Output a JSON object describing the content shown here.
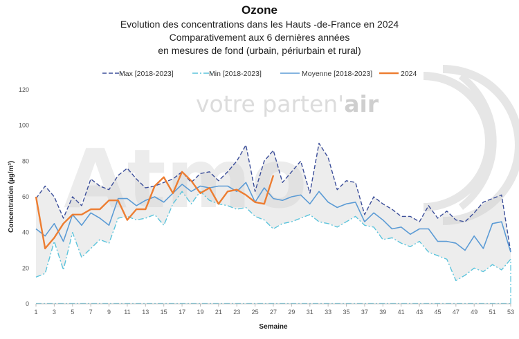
{
  "chart_data": {
    "type": "line",
    "title": "Ozone",
    "subtitle": [
      "Evolution des concentrations dans les Hauts -de-France en 2024",
      "Comparativement aux 6 dernières années",
      "en mesures de fond (urbain, périurbain et rural)"
    ],
    "xlabel": "Semaine",
    "ylabel": "Concentration (µg/m³)",
    "xlim": [
      1,
      53
    ],
    "ylim": [
      0,
      120
    ],
    "x_ticks": [
      1,
      3,
      5,
      7,
      9,
      11,
      13,
      15,
      17,
      19,
      21,
      23,
      25,
      27,
      29,
      31,
      33,
      35,
      37,
      39,
      41,
      43,
      45,
      47,
      49,
      51,
      53
    ],
    "y_ticks": [
      0,
      20,
      40,
      60,
      80,
      100,
      120
    ],
    "grid": false,
    "legend_position": "top",
    "series": [
      {
        "name": "Max [2018-2023]",
        "style": "dashed",
        "color": "#3b4e9a",
        "values": [
          59,
          66,
          60,
          48,
          60,
          55,
          70,
          66,
          64,
          72,
          76,
          70,
          65,
          66,
          68,
          70,
          74,
          68,
          73,
          74,
          69,
          74,
          80,
          89,
          63,
          80,
          86,
          68,
          74,
          80,
          62,
          90,
          82,
          64,
          69,
          68,
          50,
          60,
          56,
          53,
          49,
          49,
          46,
          55,
          48,
          52,
          47,
          46,
          51,
          57,
          59,
          61,
          29
        ]
      },
      {
        "name": "Min [2018-2023]",
        "style": "dashdot",
        "color": "#5bc4dc",
        "values": [
          15,
          17,
          35,
          19,
          40,
          26,
          31,
          36,
          34,
          48,
          49,
          47,
          48,
          50,
          44,
          56,
          63,
          56,
          63,
          58,
          56,
          55,
          53,
          54,
          49,
          47,
          42,
          45,
          46,
          48,
          50,
          46,
          45,
          43,
          46,
          49,
          44,
          43,
          36,
          37,
          34,
          32,
          35,
          29,
          27,
          25,
          13,
          16,
          20,
          18,
          22,
          19,
          25
        ]
      },
      {
        "name": "Moyenne [2018-2023]",
        "style": "solid",
        "color": "#5b9bd5",
        "values": [
          42,
          38,
          45,
          35,
          50,
          44,
          51,
          48,
          44,
          59,
          59,
          55,
          58,
          60,
          57,
          62,
          67,
          63,
          66,
          65,
          66,
          66,
          63,
          68,
          57,
          65,
          59,
          58,
          60,
          61,
          56,
          63,
          57,
          54,
          56,
          57,
          46,
          51,
          47,
          42,
          43,
          39,
          42,
          42,
          35,
          35,
          34,
          30,
          38,
          31,
          45,
          46,
          29
        ]
      },
      {
        "name": "2024",
        "style": "solid",
        "color": "#ed7d31",
        "values": [
          60,
          31,
          37,
          45,
          50,
          50,
          53,
          53,
          58,
          58,
          47,
          53,
          53,
          66,
          71,
          62,
          74,
          69,
          62,
          65,
          56,
          63,
          64,
          61,
          57,
          56,
          72
        ]
      }
    ],
    "watermark": {
      "logo_text": "Atmo",
      "tagline_regular": "votre parten'",
      "tagline_bold": "air"
    }
  }
}
